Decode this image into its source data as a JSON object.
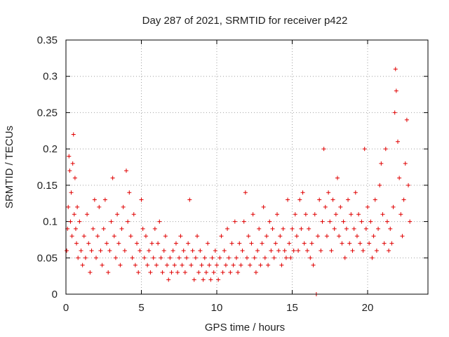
{
  "chart_data": {
    "type": "scatter",
    "title": "Day 287 of 2021, SRMTID for receiver p422",
    "xlabel": "GPS time / hours",
    "ylabel": "SRMTID / TECUs",
    "xlim": [
      0,
      24
    ],
    "ylim": [
      0,
      0.35
    ],
    "xticks": [
      0,
      5,
      10,
      15,
      20
    ],
    "yticks": [
      0,
      0.05,
      0.1,
      0.15,
      0.2,
      0.25,
      0.3,
      0.35
    ],
    "xtick_labels": [
      "0",
      "5",
      "10",
      "15",
      "20"
    ],
    "ytick_labels": [
      "0",
      "0.05",
      "0.1",
      "0.15",
      "0.2",
      "0.25",
      "0.3",
      "0.35"
    ],
    "grid": true,
    "marker": "+",
    "color": "#e00000",
    "series": [
      {
        "name": "SRMTID",
        "points": [
          [
            0.05,
            0.06
          ],
          [
            0.1,
            0.09
          ],
          [
            0.15,
            0.12
          ],
          [
            0.2,
            0.19
          ],
          [
            0.25,
            0.17
          ],
          [
            0.3,
            0.1
          ],
          [
            0.35,
            0.14
          ],
          [
            0.4,
            0.08
          ],
          [
            0.45,
            0.18
          ],
          [
            0.5,
            0.22
          ],
          [
            0.55,
            0.11
          ],
          [
            0.6,
            0.16
          ],
          [
            0.65,
            0.09
          ],
          [
            0.7,
            0.07
          ],
          [
            0.75,
            0.12
          ],
          [
            0.8,
            0.05
          ],
          [
            0.9,
            0.1
          ],
          [
            1.0,
            0.06
          ],
          [
            1.1,
            0.04
          ],
          [
            1.2,
            0.08
          ],
          [
            1.3,
            0.05
          ],
          [
            1.4,
            0.11
          ],
          [
            1.5,
            0.07
          ],
          [
            1.6,
            0.03
          ],
          [
            1.7,
            0.06
          ],
          [
            1.8,
            0.09
          ],
          [
            1.9,
            0.13
          ],
          [
            2.0,
            0.05
          ],
          [
            2.1,
            0.08
          ],
          [
            2.2,
            0.12
          ],
          [
            2.3,
            0.06
          ],
          [
            2.4,
            0.04
          ],
          [
            2.5,
            0.09
          ],
          [
            2.6,
            0.13
          ],
          [
            2.7,
            0.07
          ],
          [
            2.8,
            0.03
          ],
          [
            2.9,
            0.06
          ],
          [
            3.0,
            0.1
          ],
          [
            3.1,
            0.16
          ],
          [
            3.2,
            0.08
          ],
          [
            3.3,
            0.05
          ],
          [
            3.4,
            0.11
          ],
          [
            3.5,
            0.07
          ],
          [
            3.6,
            0.04
          ],
          [
            3.7,
            0.09
          ],
          [
            3.8,
            0.12
          ],
          [
            3.9,
            0.06
          ],
          [
            4.0,
            0.17
          ],
          [
            4.1,
            0.1
          ],
          [
            4.2,
            0.14
          ],
          [
            4.3,
            0.08
          ],
          [
            4.4,
            0.05
          ],
          [
            4.5,
            0.11
          ],
          [
            4.6,
            0.04
          ],
          [
            4.7,
            0.07
          ],
          [
            4.8,
            0.03
          ],
          [
            4.9,
            0.06
          ],
          [
            5.0,
            0.13
          ],
          [
            5.1,
            0.09
          ],
          [
            5.2,
            0.05
          ],
          [
            5.3,
            0.08
          ],
          [
            5.4,
            0.04
          ],
          [
            5.5,
            0.06
          ],
          [
            5.6,
            0.03
          ],
          [
            5.7,
            0.07
          ],
          [
            5.8,
            0.05
          ],
          [
            5.9,
            0.09
          ],
          [
            6.0,
            0.04
          ],
          [
            6.1,
            0.07
          ],
          [
            6.2,
            0.1
          ],
          [
            6.3,
            0.05
          ],
          [
            6.4,
            0.03
          ],
          [
            6.5,
            0.06
          ],
          [
            6.6,
            0.08
          ],
          [
            6.7,
            0.04
          ],
          [
            6.8,
            0.02
          ],
          [
            6.9,
            0.05
          ],
          [
            7.0,
            0.03
          ],
          [
            7.1,
            0.06
          ],
          [
            7.2,
            0.04
          ],
          [
            7.3,
            0.07
          ],
          [
            7.4,
            0.03
          ],
          [
            7.5,
            0.05
          ],
          [
            7.6,
            0.08
          ],
          [
            7.7,
            0.04
          ],
          [
            7.8,
            0.06
          ],
          [
            7.9,
            0.03
          ],
          [
            8.0,
            0.05
          ],
          [
            8.1,
            0.07
          ],
          [
            8.2,
            0.13
          ],
          [
            8.3,
            0.04
          ],
          [
            8.4,
            0.06
          ],
          [
            8.5,
            0.02
          ],
          [
            8.6,
            0.05
          ],
          [
            8.7,
            0.08
          ],
          [
            8.8,
            0.03
          ],
          [
            8.9,
            0.06
          ],
          [
            9.0,
            0.04
          ],
          [
            9.1,
            0.02
          ],
          [
            9.2,
            0.05
          ],
          [
            9.3,
            0.03
          ],
          [
            9.4,
            0.07
          ],
          [
            9.5,
            0.04
          ],
          [
            9.6,
            0.02
          ],
          [
            9.7,
            0.05
          ],
          [
            9.8,
            0.03
          ],
          [
            9.9,
            0.06
          ],
          [
            10.0,
            0.04
          ],
          [
            10.1,
            0.02
          ],
          [
            10.2,
            0.05
          ],
          [
            10.3,
            0.08
          ],
          [
            10.4,
            0.03
          ],
          [
            10.5,
            0.06
          ],
          [
            10.6,
            0.04
          ],
          [
            10.7,
            0.09
          ],
          [
            10.8,
            0.05
          ],
          [
            10.9,
            0.03
          ],
          [
            11.0,
            0.07
          ],
          [
            11.1,
            0.04
          ],
          [
            11.2,
            0.1
          ],
          [
            11.3,
            0.05
          ],
          [
            11.4,
            0.03
          ],
          [
            11.5,
            0.07
          ],
          [
            11.6,
            0.04
          ],
          [
            11.7,
            0.06
          ],
          [
            11.8,
            0.1
          ],
          [
            11.9,
            0.14
          ],
          [
            12.0,
            0.05
          ],
          [
            12.1,
            0.08
          ],
          [
            12.2,
            0.04
          ],
          [
            12.3,
            0.07
          ],
          [
            12.4,
            0.11
          ],
          [
            12.5,
            0.05
          ],
          [
            12.6,
            0.03
          ],
          [
            12.7,
            0.06
          ],
          [
            12.8,
            0.09
          ],
          [
            12.9,
            0.04
          ],
          [
            13.0,
            0.07
          ],
          [
            13.1,
            0.12
          ],
          [
            13.2,
            0.05
          ],
          [
            13.3,
            0.08
          ],
          [
            13.4,
            0.04
          ],
          [
            13.5,
            0.1
          ],
          [
            13.6,
            0.06
          ],
          [
            13.7,
            0.09
          ],
          [
            13.8,
            0.05
          ],
          [
            13.9,
            0.07
          ],
          [
            14.0,
            0.11
          ],
          [
            14.1,
            0.06
          ],
          [
            14.2,
            0.08
          ],
          [
            14.3,
            0.04
          ],
          [
            14.4,
            0.09
          ],
          [
            14.5,
            0.06
          ],
          [
            14.6,
            0.05
          ],
          [
            14.7,
            0.13
          ],
          [
            14.8,
            0.07
          ],
          [
            14.9,
            0.05
          ],
          [
            15.0,
            0.09
          ],
          [
            15.1,
            0.06
          ],
          [
            15.2,
            0.11
          ],
          [
            15.3,
            0.08
          ],
          [
            15.4,
            0.06
          ],
          [
            15.5,
            0.13
          ],
          [
            15.6,
            0.09
          ],
          [
            15.7,
            0.14
          ],
          [
            15.8,
            0.07
          ],
          [
            15.9,
            0.11
          ],
          [
            16.0,
            0.06
          ],
          [
            16.1,
            0.09
          ],
          [
            16.2,
            0.05
          ],
          [
            16.3,
            0.07
          ],
          [
            16.4,
            0.04
          ],
          [
            16.5,
            0.11
          ],
          [
            16.6,
            0.0
          ],
          [
            16.7,
            0.08
          ],
          [
            16.8,
            0.13
          ],
          [
            16.9,
            0.06
          ],
          [
            17.0,
            0.1
          ],
          [
            17.1,
            0.2
          ],
          [
            17.2,
            0.12
          ],
          [
            17.3,
            0.08
          ],
          [
            17.4,
            0.14
          ],
          [
            17.5,
            0.1
          ],
          [
            17.6,
            0.06
          ],
          [
            17.7,
            0.13
          ],
          [
            17.8,
            0.09
          ],
          [
            17.9,
            0.11
          ],
          [
            18.0,
            0.16
          ],
          [
            18.1,
            0.08
          ],
          [
            18.2,
            0.12
          ],
          [
            18.3,
            0.07
          ],
          [
            18.4,
            0.1
          ],
          [
            18.5,
            0.05
          ],
          [
            18.6,
            0.09
          ],
          [
            18.7,
            0.13
          ],
          [
            18.8,
            0.07
          ],
          [
            18.9,
            0.11
          ],
          [
            19.0,
            0.06
          ],
          [
            19.1,
            0.09
          ],
          [
            19.2,
            0.14
          ],
          [
            19.3,
            0.08
          ],
          [
            19.4,
            0.11
          ],
          [
            19.5,
            0.07
          ],
          [
            19.6,
            0.1
          ],
          [
            19.7,
            0.06
          ],
          [
            19.8,
            0.2
          ],
          [
            19.9,
            0.09
          ],
          [
            20.0,
            0.12
          ],
          [
            20.1,
            0.07
          ],
          [
            20.2,
            0.1
          ],
          [
            20.3,
            0.05
          ],
          [
            20.4,
            0.08
          ],
          [
            20.5,
            0.13
          ],
          [
            20.6,
            0.06
          ],
          [
            20.7,
            0.09
          ],
          [
            20.8,
            0.15
          ],
          [
            20.9,
            0.18
          ],
          [
            21.0,
            0.11
          ],
          [
            21.1,
            0.07
          ],
          [
            21.2,
            0.2
          ],
          [
            21.3,
            0.1
          ],
          [
            21.4,
            0.06
          ],
          [
            21.5,
            0.09
          ],
          [
            21.6,
            0.07
          ],
          [
            21.7,
            0.12
          ],
          [
            21.8,
            0.25
          ],
          [
            21.85,
            0.31
          ],
          [
            21.9,
            0.28
          ],
          [
            22.0,
            0.21
          ],
          [
            22.1,
            0.16
          ],
          [
            22.2,
            0.11
          ],
          [
            22.3,
            0.08
          ],
          [
            22.4,
            0.13
          ],
          [
            22.5,
            0.18
          ],
          [
            22.6,
            0.24
          ],
          [
            22.7,
            0.15
          ],
          [
            22.8,
            0.1
          ]
        ]
      }
    ]
  }
}
